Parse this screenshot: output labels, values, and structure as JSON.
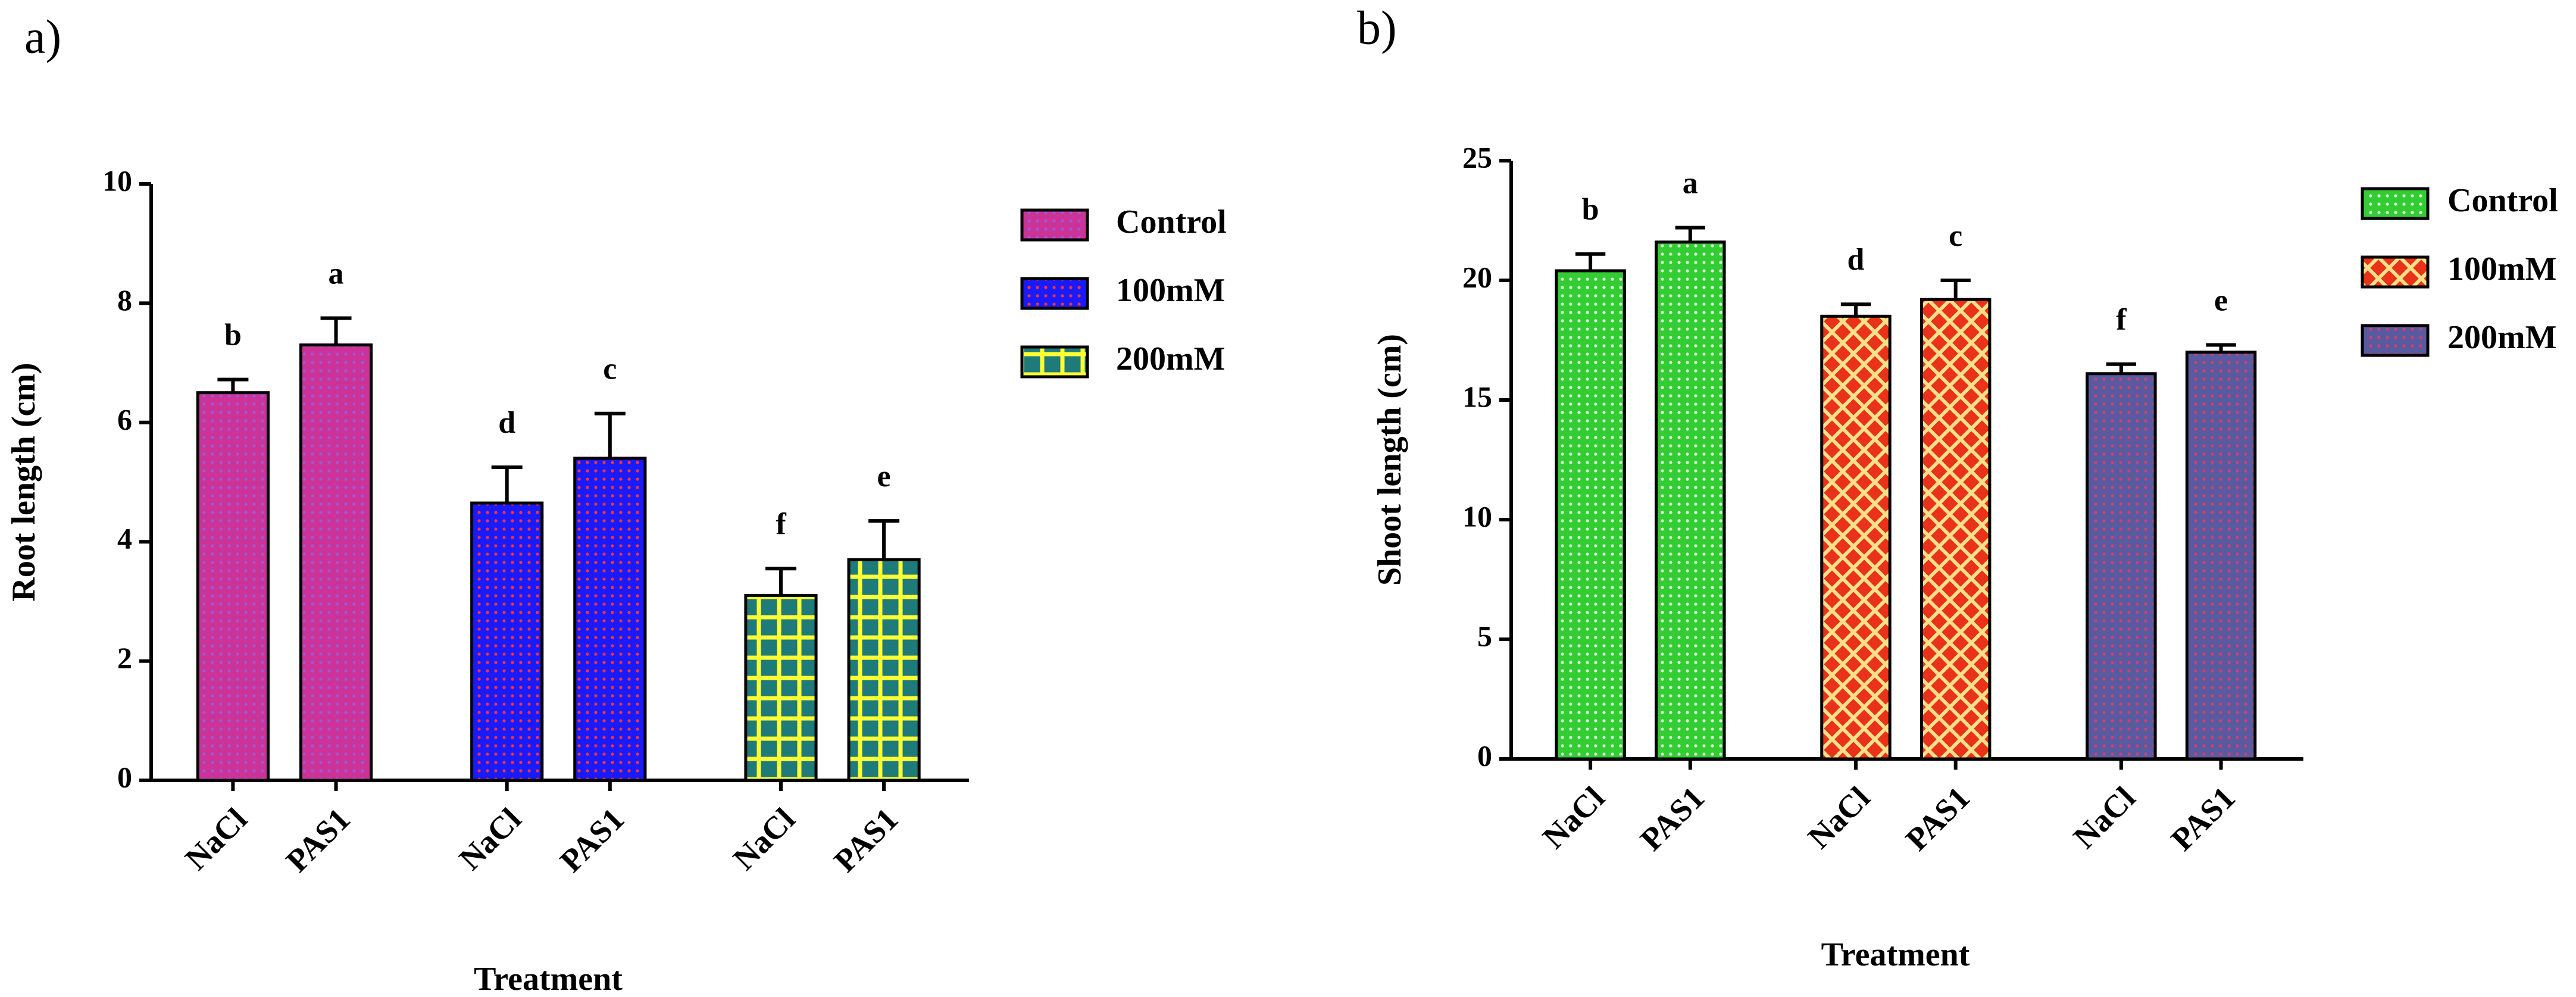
{
  "chart_data": [
    {
      "type": "bar",
      "panel_label": "a)",
      "ylabel": "Root length (cm)",
      "xlabel": "Treatment",
      "categories": [
        "NaCl",
        "PAS1"
      ],
      "series": [
        {
          "name": "Control",
          "color": "#cc3399",
          "hatch_color": "#9b59d6",
          "pattern": "dots",
          "values": [
            6.5,
            7.3
          ],
          "errors": [
            0.22,
            0.45
          ],
          "annotations": [
            "b",
            "a"
          ]
        },
        {
          "name": "100mM",
          "color": "#1a1aff",
          "hatch_color": "#ff3333",
          "pattern": "dots",
          "values": [
            4.65,
            5.4
          ],
          "errors": [
            0.6,
            0.75
          ],
          "annotations": [
            "d",
            "c"
          ]
        },
        {
          "name": "200mM",
          "color": "#1f7a7a",
          "hatch_color": "#ffff33",
          "pattern": "grid",
          "values": [
            3.1,
            3.7
          ],
          "errors": [
            0.45,
            0.65
          ],
          "annotations": [
            "f",
            "e"
          ]
        }
      ],
      "ylim": [
        0,
        10
      ],
      "yticks": [
        0,
        2,
        4,
        6,
        8,
        10
      ],
      "legend": "right"
    },
    {
      "type": "bar",
      "panel_label": "b)",
      "ylabel": "Shoot length (cm)",
      "xlabel": "Treatment",
      "categories": [
        "NaCl",
        "PAS1"
      ],
      "series": [
        {
          "name": "Control",
          "color": "#33cc33",
          "hatch_color": "#d8ffd8",
          "pattern": "dots",
          "values": [
            20.4,
            21.6
          ],
          "errors": [
            0.7,
            0.6
          ],
          "annotations": [
            "b",
            "a"
          ]
        },
        {
          "name": "100mM",
          "color": "#e8321a",
          "hatch_color": "#ffe08a",
          "pattern": "cross",
          "values": [
            18.5,
            19.2
          ],
          "errors": [
            0.5,
            0.8
          ],
          "annotations": [
            "d",
            "c"
          ]
        },
        {
          "name": "200mM",
          "color": "#5a5aa0",
          "hatch_color": "#d04070",
          "pattern": "dots",
          "values": [
            16.1,
            17.0
          ],
          "errors": [
            0.4,
            0.3
          ],
          "annotations": [
            "f",
            "e"
          ]
        }
      ],
      "ylim": [
        0,
        25
      ],
      "yticks": [
        0,
        5,
        10,
        15,
        20,
        25
      ],
      "legend": "right"
    }
  ]
}
